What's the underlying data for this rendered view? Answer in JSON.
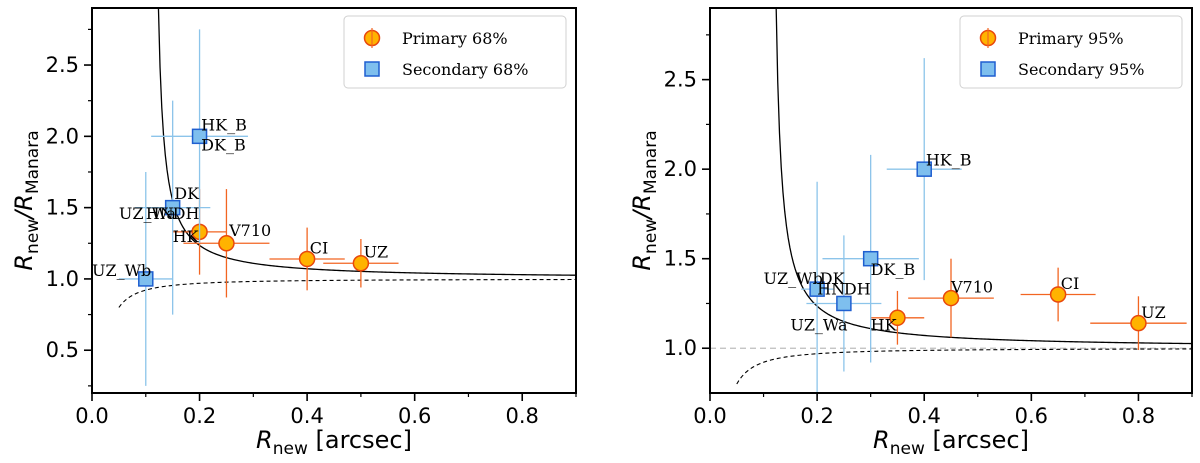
{
  "colors": {
    "primary_fill": "#ffb300",
    "primary_edge": "#e8480c",
    "secondary_fill": "#7ebfee",
    "secondary_edge": "#1f5fd0",
    "primary_err": "#f26522",
    "secondary_err": "#8cc4ea"
  },
  "chart_data": [
    {
      "type": "scatter",
      "title": "",
      "xlabel": {
        "main": "R",
        "sub": "new",
        "unit": " [arcsec]"
      },
      "ylabel": {
        "main": "R",
        "sub": "new",
        "sep": "/R",
        "sub2": "Manara"
      },
      "xlim": [
        0,
        0.9
      ],
      "ylim": [
        0.2,
        2.9
      ],
      "xticks": [
        "0.0",
        "0.2",
        "0.4",
        "0.6",
        "0.8"
      ],
      "yticks": [
        "0.5",
        "1.0",
        "1.5",
        "2.0",
        "2.5"
      ],
      "grid": false,
      "show_hline": false,
      "legend": {
        "position": "top-right",
        "entries": [
          "Primary 68%",
          "Secondary 68%"
        ]
      },
      "curve_min_x": 0.12,
      "dashed_min_x": 0.05,
      "series": [
        {
          "name": "Primary 68%",
          "points": [
            {
              "label": "HK",
              "x": 0.2,
              "y": 1.33,
              "xerr": 0.05,
              "yerr": 0.3,
              "label_dx": -0.05,
              "label_dy": -0.07
            },
            {
              "label": "V710",
              "x": 0.25,
              "y": 1.25,
              "xerr": 0.08,
              "yerr": 0.38,
              "label_dx": 0.005,
              "label_dy": 0.05
            },
            {
              "label": "CI",
              "x": 0.4,
              "y": 1.14,
              "xerr": 0.07,
              "yerr": 0.22,
              "label_dx": 0.005,
              "label_dy": 0.04
            },
            {
              "label": "UZ",
              "x": 0.5,
              "y": 1.11,
              "xerr": 0.07,
              "yerr": 0.17,
              "label_dx": 0.005,
              "label_dy": 0.04
            }
          ]
        },
        {
          "name": "Secondary 68%",
          "points": [
            {
              "label": "HK_B",
              "x": 0.2,
              "y": 2.0,
              "xerr": 0.09,
              "yerr": 0.75,
              "label_dx": 0.003,
              "label_dy": 0.04
            },
            {
              "label": "DK_B",
              "x": 0.2,
              "y": 2.0,
              "xerr": 0,
              "yerr": 0,
              "label_dx": 0.003,
              "label_dy": -0.1
            },
            {
              "label": "DK",
              "x": 0.15,
              "y": 1.5,
              "xerr": 0.07,
              "yerr": 0.75,
              "label_dx": 0.003,
              "label_dy": 0.06
            },
            {
              "label": "HN",
              "x": 0.15,
              "y": 1.5,
              "xerr": 0,
              "yerr": 0,
              "label_dx": -0.05,
              "label_dy": -0.08
            },
            {
              "label": "DH",
              "x": 0.15,
              "y": 1.5,
              "xerr": 0,
              "yerr": 0,
              "label_dx": 0.0,
              "label_dy": -0.08
            },
            {
              "label": "UZ_Wa",
              "x": 0.15,
              "y": 1.47,
              "xerr": 0,
              "yerr": 0,
              "label_dx": -0.1,
              "label_dy": -0.05
            },
            {
              "label": "UZ_Wb",
              "x": 0.1,
              "y": 1.0,
              "xerr": 0.05,
              "yerr": 0.75,
              "label_dx": -0.1,
              "label_dy": 0.02
            }
          ]
        }
      ]
    },
    {
      "type": "scatter",
      "title": "",
      "xlabel": {
        "main": "R",
        "sub": "new",
        "unit": " [arcsec]"
      },
      "ylabel": {
        "main": "R",
        "sub": "new",
        "sep": "/R",
        "sub2": "Manara"
      },
      "xlim": [
        0,
        0.9
      ],
      "ylim": [
        0.75,
        2.9
      ],
      "xticks": [
        "0.0",
        "0.2",
        "0.4",
        "0.6",
        "0.8"
      ],
      "yticks": [
        "1.0",
        "1.5",
        "2.0",
        "2.5"
      ],
      "grid": false,
      "show_hline": true,
      "legend": {
        "position": "top-right",
        "entries": [
          "Primary 95%",
          "Secondary 95%"
        ]
      },
      "curve_min_x": 0.12,
      "dashed_min_x": 0.05,
      "series": [
        {
          "name": "Primary 95%",
          "points": [
            {
              "label": "HK",
              "x": 0.35,
              "y": 1.17,
              "xerr": 0.05,
              "yerr": 0.15,
              "label_dx": -0.05,
              "label_dy": -0.07
            },
            {
              "label": "V710",
              "x": 0.45,
              "y": 1.28,
              "xerr": 0.08,
              "yerr": 0.22,
              "label_dx": 0.0,
              "label_dy": 0.03
            },
            {
              "label": "CI",
              "x": 0.65,
              "y": 1.3,
              "xerr": 0.07,
              "yerr": 0.15,
              "label_dx": 0.005,
              "label_dy": 0.03
            },
            {
              "label": "UZ",
              "x": 0.8,
              "y": 1.14,
              "xerr": 0.09,
              "yerr": 0.15,
              "label_dx": 0.005,
              "label_dy": 0.03
            }
          ]
        },
        {
          "name": "Secondary 95%",
          "points": [
            {
              "label": "HK_B",
              "x": 0.4,
              "y": 2.0,
              "xerr": 0.07,
              "yerr": 0.62,
              "label_dx": 0.003,
              "label_dy": 0.02
            },
            {
              "label": "DK_B",
              "x": 0.3,
              "y": 1.5,
              "xerr": 0.09,
              "yerr": 0.58,
              "label_dx": 0.0,
              "label_dy": -0.09
            },
            {
              "label": "UZ_Wb",
              "x": 0.2,
              "y": 1.33,
              "xerr": 0.03,
              "yerr": 0.6,
              "label_dx": -0.1,
              "label_dy": 0.03
            },
            {
              "label": "DK",
              "x": 0.2,
              "y": 1.33,
              "xerr": 0,
              "yerr": 0,
              "label_dx": 0.005,
              "label_dy": 0.03
            },
            {
              "label": "HN",
              "x": 0.25,
              "y": 1.25,
              "xerr": 0.07,
              "yerr": 0.38,
              "label_dx": -0.05,
              "label_dy": 0.05
            },
            {
              "label": "DH",
              "x": 0.25,
              "y": 1.25,
              "xerr": 0,
              "yerr": 0,
              "label_dx": 0.0,
              "label_dy": 0.05
            },
            {
              "label": "UZ_Wa",
              "x": 0.25,
              "y": 1.2,
              "xerr": 0,
              "yerr": 0,
              "label_dx": -0.1,
              "label_dy": -0.1
            }
          ]
        }
      ]
    }
  ]
}
